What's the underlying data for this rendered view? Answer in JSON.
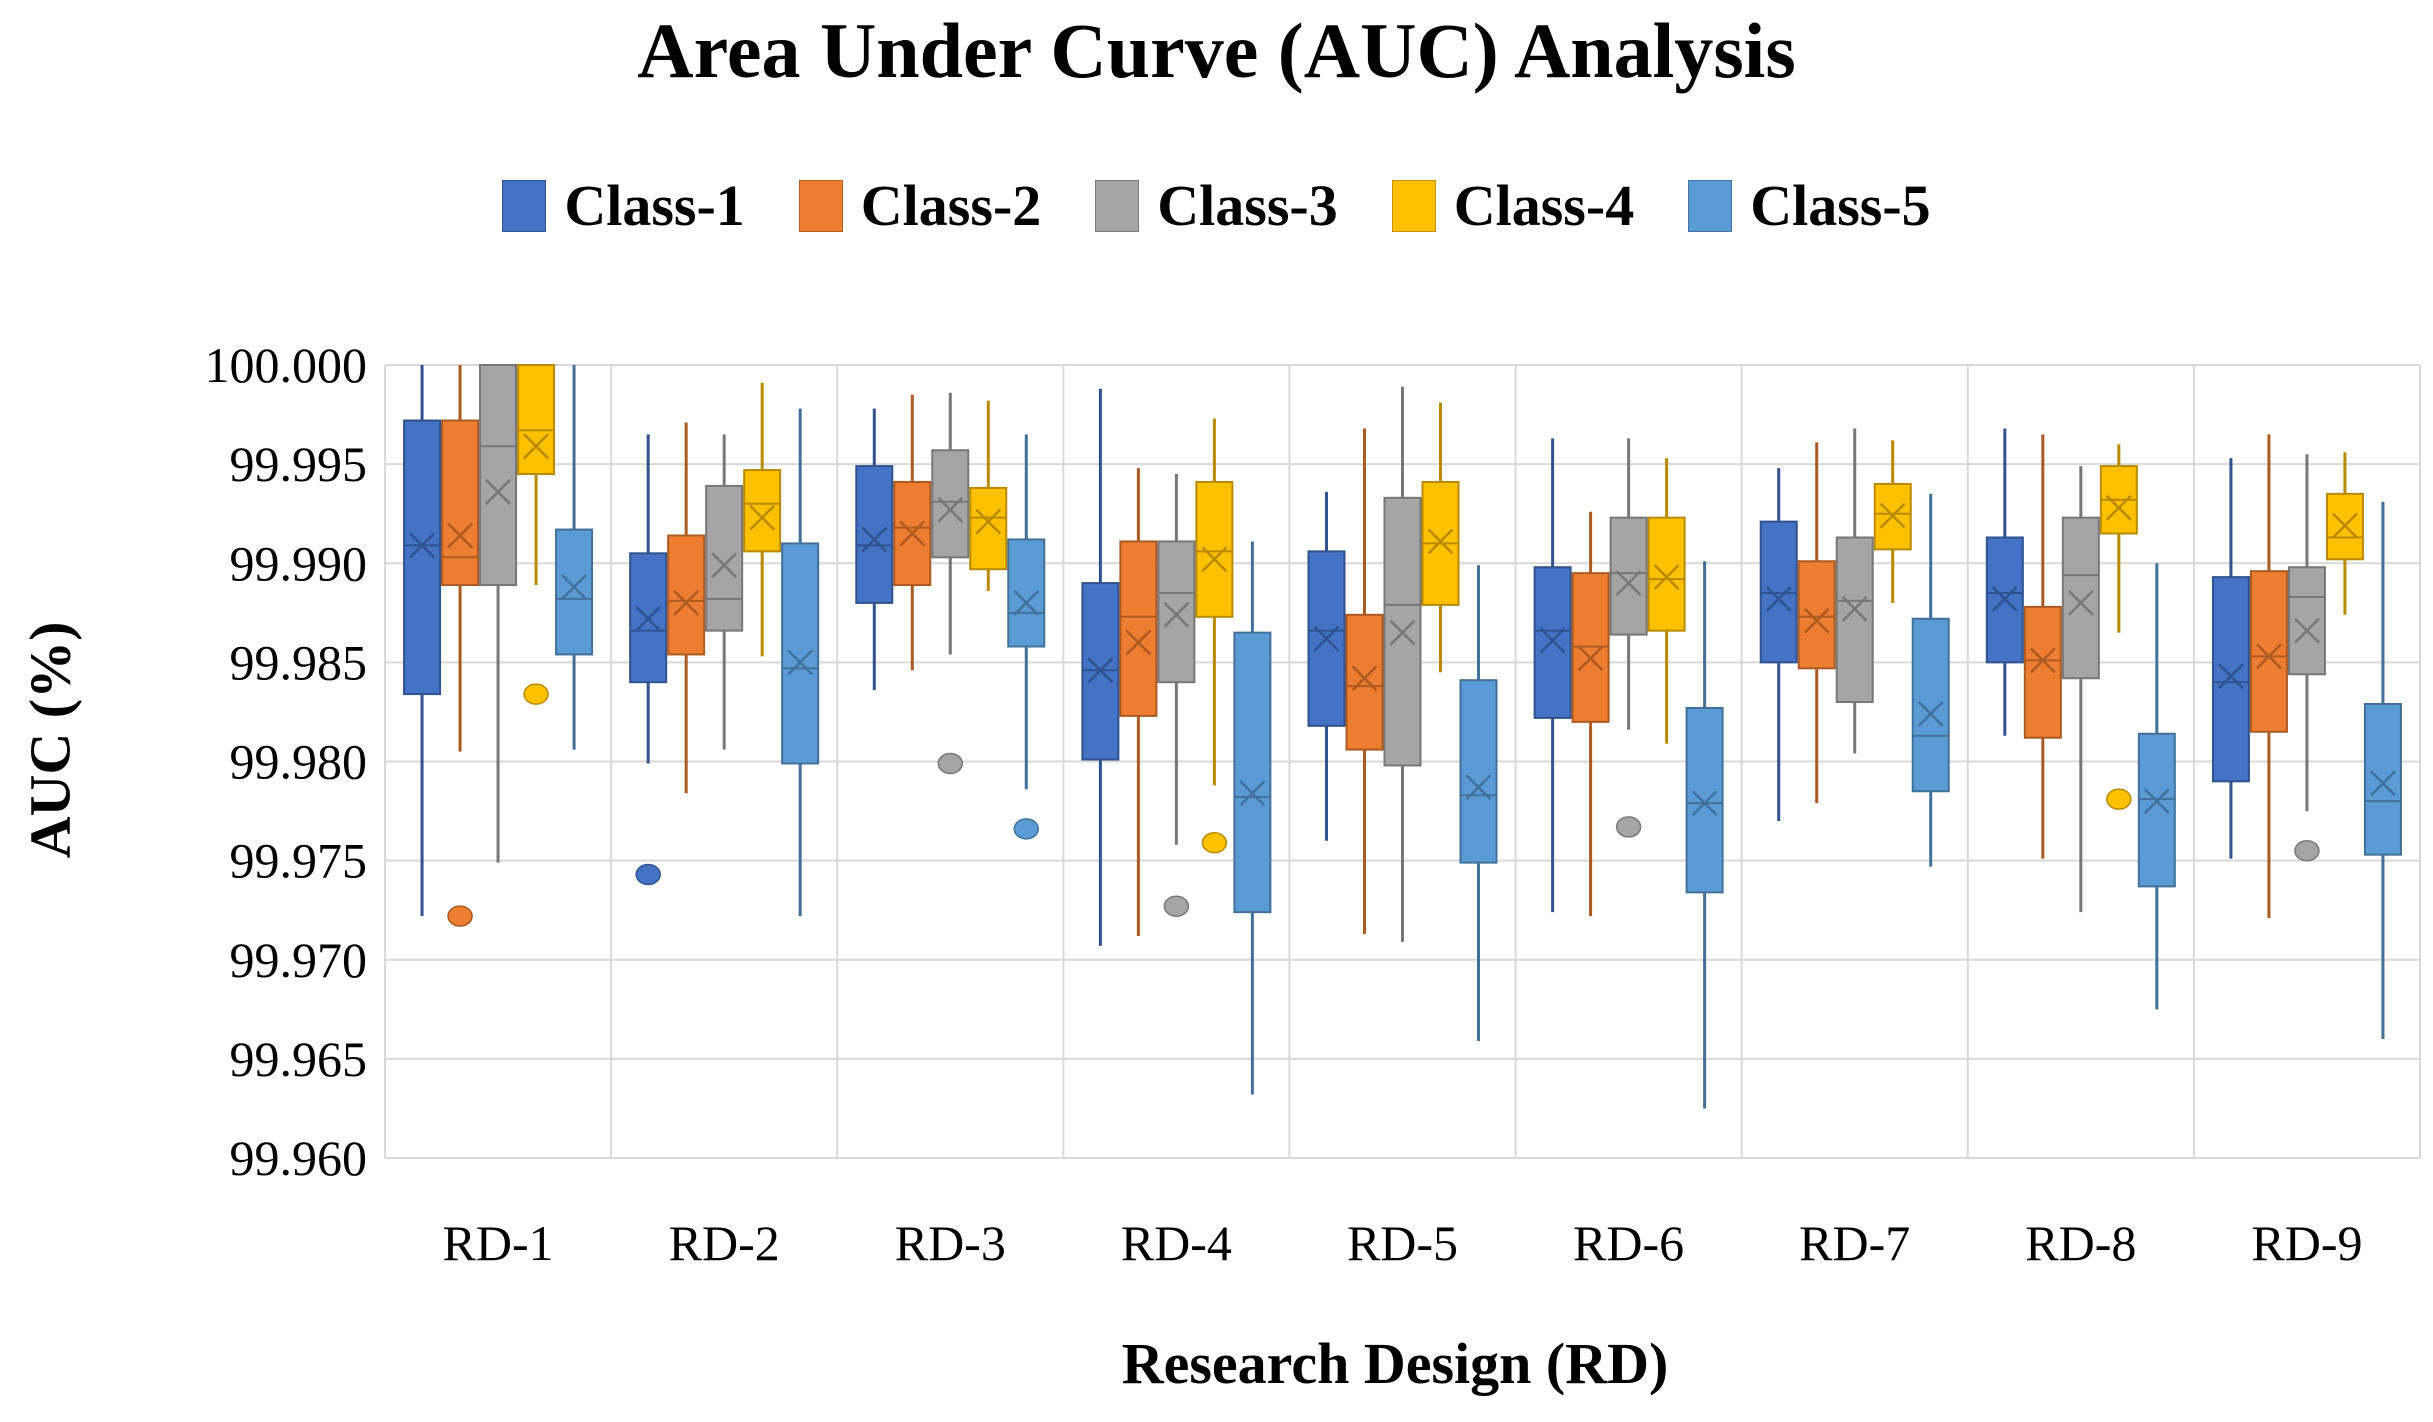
{
  "chart_data": {
    "type": "box",
    "title": "Area Under Curve (AUC) Analysis",
    "xlabel": "Research Design (RD)",
    "ylabel": "AUC (%)",
    "ylim": [
      99.96,
      100.0
    ],
    "yticks": [
      "99.960",
      "99.965",
      "99.970",
      "99.975",
      "99.980",
      "99.985",
      "99.990",
      "99.995",
      "100.000"
    ],
    "grid": true,
    "legend_position": "top",
    "categories": [
      "RD-1",
      "RD-2",
      "RD-3",
      "RD-4",
      "RD-5",
      "RD-6",
      "RD-7",
      "RD-8",
      "RD-9"
    ],
    "series": [
      {
        "name": "Class-1",
        "color": "#4472C4",
        "boxes": [
          {
            "min": 99.9722,
            "q1": 99.9834,
            "median": 99.9909,
            "q3": 99.9972,
            "max": 100.0,
            "mean": 99.9909,
            "outliers": []
          },
          {
            "min": 99.9799,
            "q1": 99.984,
            "median": 99.9866,
            "q3": 99.9905,
            "max": 99.9965,
            "mean": 99.9872,
            "outliers": [
              99.9743
            ]
          },
          {
            "min": 99.9836,
            "q1": 99.988,
            "median": 99.9909,
            "q3": 99.9949,
            "max": 99.9978,
            "mean": 99.9912,
            "outliers": []
          },
          {
            "min": 99.9707,
            "q1": 99.9801,
            "median": 99.9846,
            "q3": 99.989,
            "max": 99.9988,
            "mean": 99.9846,
            "outliers": []
          },
          {
            "min": 99.976,
            "q1": 99.9818,
            "median": 99.9866,
            "q3": 99.9906,
            "max": 99.9936,
            "mean": 99.9862,
            "outliers": []
          },
          {
            "min": 99.9724,
            "q1": 99.9822,
            "median": 99.9866,
            "q3": 99.9898,
            "max": 99.9963,
            "mean": 99.9861,
            "outliers": []
          },
          {
            "min": 99.977,
            "q1": 99.985,
            "median": 99.9885,
            "q3": 99.9921,
            "max": 99.9948,
            "mean": 99.9882,
            "outliers": []
          },
          {
            "min": 99.9813,
            "q1": 99.985,
            "median": 99.9885,
            "q3": 99.9913,
            "max": 99.9968,
            "mean": 99.9882,
            "outliers": []
          },
          {
            "min": 99.9751,
            "q1": 99.979,
            "median": 99.984,
            "q3": 99.9893,
            "max": 99.9953,
            "mean": 99.9843,
            "outliers": []
          }
        ]
      },
      {
        "name": "Class-2",
        "color": "#ED7D31",
        "boxes": [
          {
            "min": 99.9805,
            "q1": 99.9889,
            "median": 99.9903,
            "q3": 99.9972,
            "max": 100.0,
            "mean": 99.9914,
            "outliers": [
              99.9722
            ]
          },
          {
            "min": 99.9784,
            "q1": 99.9854,
            "median": 99.9881,
            "q3": 99.9914,
            "max": 99.9971,
            "mean": 99.988,
            "outliers": []
          },
          {
            "min": 99.9846,
            "q1": 99.9889,
            "median": 99.9918,
            "q3": 99.9941,
            "max": 99.9985,
            "mean": 99.9915,
            "outliers": []
          },
          {
            "min": 99.9712,
            "q1": 99.9823,
            "median": 99.9873,
            "q3": 99.9911,
            "max": 99.9948,
            "mean": 99.986,
            "outliers": []
          },
          {
            "min": 99.9713,
            "q1": 99.9806,
            "median": 99.9838,
            "q3": 99.9874,
            "max": 99.9968,
            "mean": 99.9842,
            "outliers": []
          },
          {
            "min": 99.9722,
            "q1": 99.982,
            "median": 99.9858,
            "q3": 99.9895,
            "max": 99.9926,
            "mean": 99.9852,
            "outliers": []
          },
          {
            "min": 99.9779,
            "q1": 99.9847,
            "median": 99.9873,
            "q3": 99.9901,
            "max": 99.9961,
            "mean": 99.9871,
            "outliers": []
          },
          {
            "min": 99.9751,
            "q1": 99.9812,
            "median": 99.9851,
            "q3": 99.9878,
            "max": 99.9965,
            "mean": 99.9851,
            "outliers": []
          },
          {
            "min": 99.9721,
            "q1": 99.9815,
            "median": 99.9853,
            "q3": 99.9896,
            "max": 99.9965,
            "mean": 99.9853,
            "outliers": []
          }
        ]
      },
      {
        "name": "Class-3",
        "color": "#A5A5A5",
        "boxes": [
          {
            "min": 99.9749,
            "q1": 99.9889,
            "median": 99.9959,
            "q3": 100.0,
            "max": 100.0,
            "mean": 99.9936,
            "outliers": []
          },
          {
            "min": 99.9806,
            "q1": 99.9866,
            "median": 99.9882,
            "q3": 99.9939,
            "max": 99.9965,
            "mean": 99.9899,
            "outliers": []
          },
          {
            "min": 99.9854,
            "q1": 99.9903,
            "median": 99.9931,
            "q3": 99.9957,
            "max": 99.9986,
            "mean": 99.9927,
            "outliers": [
              99.9799
            ]
          },
          {
            "min": 99.9758,
            "q1": 99.984,
            "median": 99.9885,
            "q3": 99.9911,
            "max": 99.9945,
            "mean": 99.9874,
            "outliers": [
              99.9727
            ]
          },
          {
            "min": 99.9709,
            "q1": 99.9798,
            "median": 99.9879,
            "q3": 99.9933,
            "max": 99.9989,
            "mean": 99.9865,
            "outliers": []
          },
          {
            "min": 99.9816,
            "q1": 99.9864,
            "median": 99.9895,
            "q3": 99.9923,
            "max": 99.9963,
            "mean": 99.989,
            "outliers": [
              99.9767
            ]
          },
          {
            "min": 99.9804,
            "q1": 99.983,
            "median": 99.9881,
            "q3": 99.9913,
            "max": 99.9968,
            "mean": 99.9877,
            "outliers": []
          },
          {
            "min": 99.9724,
            "q1": 99.9842,
            "median": 99.9894,
            "q3": 99.9923,
            "max": 99.9949,
            "mean": 99.988,
            "outliers": []
          },
          {
            "min": 99.9775,
            "q1": 99.9844,
            "median": 99.9883,
            "q3": 99.9898,
            "max": 99.9955,
            "mean": 99.9866,
            "outliers": [
              99.9755
            ]
          }
        ]
      },
      {
        "name": "Class-4",
        "color": "#FFC000",
        "boxes": [
          {
            "min": 99.9889,
            "q1": 99.9945,
            "median": 99.9967,
            "q3": 100.0,
            "max": 100.0,
            "mean": 99.9959,
            "outliers": [
              99.9834
            ]
          },
          {
            "min": 99.9853,
            "q1": 99.9906,
            "median": 99.993,
            "q3": 99.9947,
            "max": 99.9991,
            "mean": 99.9923,
            "outliers": []
          },
          {
            "min": 99.9886,
            "q1": 99.9897,
            "median": 99.9923,
            "q3": 99.9938,
            "max": 99.9982,
            "mean": 99.9921,
            "outliers": []
          },
          {
            "min": 99.9788,
            "q1": 99.9873,
            "median": 99.9906,
            "q3": 99.9941,
            "max": 99.9973,
            "mean": 99.9902,
            "outliers": [
              99.9759
            ]
          },
          {
            "min": 99.9845,
            "q1": 99.9879,
            "median": 99.991,
            "q3": 99.9941,
            "max": 99.9981,
            "mean": 99.9911,
            "outliers": []
          },
          {
            "min": 99.9809,
            "q1": 99.9866,
            "median": 99.9892,
            "q3": 99.9923,
            "max": 99.9953,
            "mean": 99.9893,
            "outliers": []
          },
          {
            "min": 99.988,
            "q1": 99.9907,
            "median": 99.9925,
            "q3": 99.994,
            "max": 99.9962,
            "mean": 99.9924,
            "outliers": []
          },
          {
            "min": 99.9865,
            "q1": 99.9915,
            "median": 99.9932,
            "q3": 99.9949,
            "max": 99.996,
            "mean": 99.9928,
            "outliers": [
              99.9781
            ]
          },
          {
            "min": 99.9874,
            "q1": 99.9902,
            "median": 99.9913,
            "q3": 99.9935,
            "max": 99.9956,
            "mean": 99.9919,
            "outliers": []
          }
        ]
      },
      {
        "name": "Class-5",
        "color": "#5B9BD5",
        "boxes": [
          {
            "min": 99.9806,
            "q1": 99.9854,
            "median": 99.9882,
            "q3": 99.9917,
            "max": 100.0,
            "mean": 99.9888,
            "outliers": []
          },
          {
            "min": 99.9722,
            "q1": 99.9799,
            "median": 99.9847,
            "q3": 99.991,
            "max": 99.9978,
            "mean": 99.985,
            "outliers": []
          },
          {
            "min": 99.9786,
            "q1": 99.9858,
            "median": 99.9875,
            "q3": 99.9912,
            "max": 99.9965,
            "mean": 99.988,
            "outliers": [
              99.9766
            ]
          },
          {
            "min": 99.9632,
            "q1": 99.9724,
            "median": 99.9782,
            "q3": 99.9865,
            "max": 99.9911,
            "mean": 99.9784,
            "outliers": []
          },
          {
            "min": 99.9659,
            "q1": 99.9749,
            "median": 99.9783,
            "q3": 99.9841,
            "max": 99.9899,
            "mean": 99.9787,
            "outliers": []
          },
          {
            "min": 99.9625,
            "q1": 99.9734,
            "median": 99.9779,
            "q3": 99.9827,
            "max": 99.9901,
            "mean": 99.9779,
            "outliers": []
          },
          {
            "min": 99.9747,
            "q1": 99.9785,
            "median": 99.9813,
            "q3": 99.9872,
            "max": 99.9935,
            "mean": 99.9824,
            "outliers": []
          },
          {
            "min": 99.9675,
            "q1": 99.9737,
            "median": 99.9781,
            "q3": 99.9814,
            "max": 99.99,
            "mean": 99.978,
            "outliers": []
          },
          {
            "min": 99.966,
            "q1": 99.9753,
            "median": 99.978,
            "q3": 99.9829,
            "max": 99.9931,
            "mean": 99.9789,
            "outliers": []
          }
        ]
      }
    ]
  }
}
